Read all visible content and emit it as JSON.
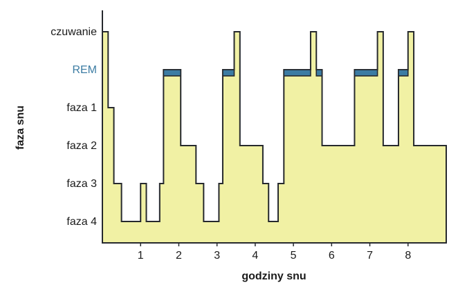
{
  "chart_data": {
    "type": "area",
    "subtype": "step-hypnogram",
    "title": "",
    "xlabel": "godziny snu",
    "ylabel": "faza snu",
    "xlim": [
      0,
      9
    ],
    "x_ticks": [
      1,
      2,
      3,
      4,
      5,
      6,
      7,
      8
    ],
    "y_levels": [
      {
        "label": "faza 4",
        "value": 0
      },
      {
        "label": "faza 3",
        "value": 1
      },
      {
        "label": "faza 2",
        "value": 2
      },
      {
        "label": "faza 1",
        "value": 3
      },
      {
        "label": "REM",
        "value": 4
      },
      {
        "label": "czuwanie",
        "value": 5
      }
    ],
    "segments": [
      {
        "start": 0.0,
        "end": 0.15,
        "stage": "czuwanie"
      },
      {
        "start": 0.15,
        "end": 0.3,
        "stage": "faza 1"
      },
      {
        "start": 0.3,
        "end": 0.5,
        "stage": "faza 3"
      },
      {
        "start": 0.5,
        "end": 1.0,
        "stage": "faza 4"
      },
      {
        "start": 1.0,
        "end": 1.15,
        "stage": "faza 3"
      },
      {
        "start": 1.15,
        "end": 1.5,
        "stage": "faza 4"
      },
      {
        "start": 1.5,
        "end": 1.6,
        "stage": "faza 3"
      },
      {
        "start": 1.6,
        "end": 2.05,
        "stage": "REM"
      },
      {
        "start": 2.05,
        "end": 2.45,
        "stage": "faza 2"
      },
      {
        "start": 2.45,
        "end": 2.65,
        "stage": "faza 3"
      },
      {
        "start": 2.65,
        "end": 3.05,
        "stage": "faza 4"
      },
      {
        "start": 3.05,
        "end": 3.15,
        "stage": "faza 3"
      },
      {
        "start": 3.15,
        "end": 3.45,
        "stage": "REM"
      },
      {
        "start": 3.45,
        "end": 3.6,
        "stage": "czuwanie"
      },
      {
        "start": 3.6,
        "end": 4.2,
        "stage": "faza 2"
      },
      {
        "start": 4.2,
        "end": 4.35,
        "stage": "faza 3"
      },
      {
        "start": 4.35,
        "end": 4.6,
        "stage": "faza 4"
      },
      {
        "start": 4.6,
        "end": 4.75,
        "stage": "faza 3"
      },
      {
        "start": 4.75,
        "end": 5.45,
        "stage": "REM"
      },
      {
        "start": 5.45,
        "end": 5.6,
        "stage": "czuwanie"
      },
      {
        "start": 5.6,
        "end": 5.75,
        "stage": "REM"
      },
      {
        "start": 5.75,
        "end": 6.6,
        "stage": "faza 2"
      },
      {
        "start": 6.6,
        "end": 7.2,
        "stage": "REM"
      },
      {
        "start": 7.2,
        "end": 7.35,
        "stage": "czuwanie"
      },
      {
        "start": 7.35,
        "end": 7.75,
        "stage": "faza 2"
      },
      {
        "start": 7.75,
        "end": 8.0,
        "stage": "REM"
      },
      {
        "start": 8.0,
        "end": 8.15,
        "stage": "czuwanie"
      },
      {
        "start": 8.15,
        "end": 9.0,
        "stage": "faza 2"
      }
    ],
    "colors": {
      "fill": "#f1f1a4",
      "line": "#26292d",
      "rem_highlight": "#3c7ca3",
      "rem_label": "#3c7ca3",
      "tick_label": "#1a1a1a"
    },
    "legend": "none",
    "grid": false
  }
}
